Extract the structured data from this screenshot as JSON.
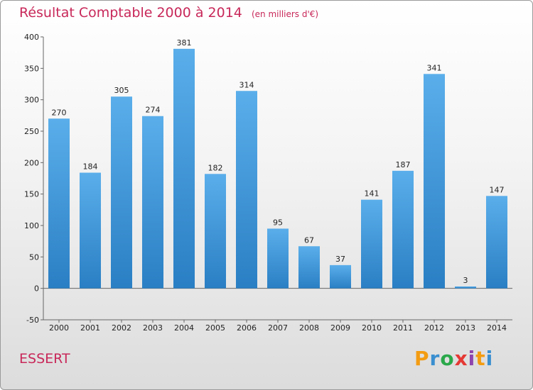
{
  "title": "Résultat Comptable 2000 à 2014",
  "subtitle": "(en milliers d'€)",
  "commune": "ESSERT",
  "logo": {
    "letters": [
      "P",
      "r",
      "o",
      "x",
      "i",
      "t",
      "i"
    ],
    "colors": [
      "#f39c12",
      "#3a8fd0",
      "#2aa84a",
      "#e53935",
      "#8e44ad",
      "#f39c12",
      "#3a8fd0"
    ]
  },
  "colors": {
    "bar_top": "#5aaeea",
    "bar_bottom": "#2a7fc4",
    "accent": "#c8285a"
  },
  "chart_data": {
    "type": "bar",
    "categories": [
      "2000",
      "2001",
      "2002",
      "2003",
      "2004",
      "2005",
      "2006",
      "2007",
      "2008",
      "2009",
      "2010",
      "2011",
      "2012",
      "2013",
      "2014"
    ],
    "values": [
      270,
      184,
      305,
      274,
      381,
      182,
      314,
      95,
      67,
      37,
      141,
      187,
      341,
      3,
      147
    ],
    "ylim": [
      -50,
      400
    ],
    "yticks": [
      -50,
      0,
      50,
      100,
      150,
      200,
      250,
      300,
      350,
      400
    ],
    "grid": false,
    "xlabel": "",
    "ylabel": ""
  }
}
